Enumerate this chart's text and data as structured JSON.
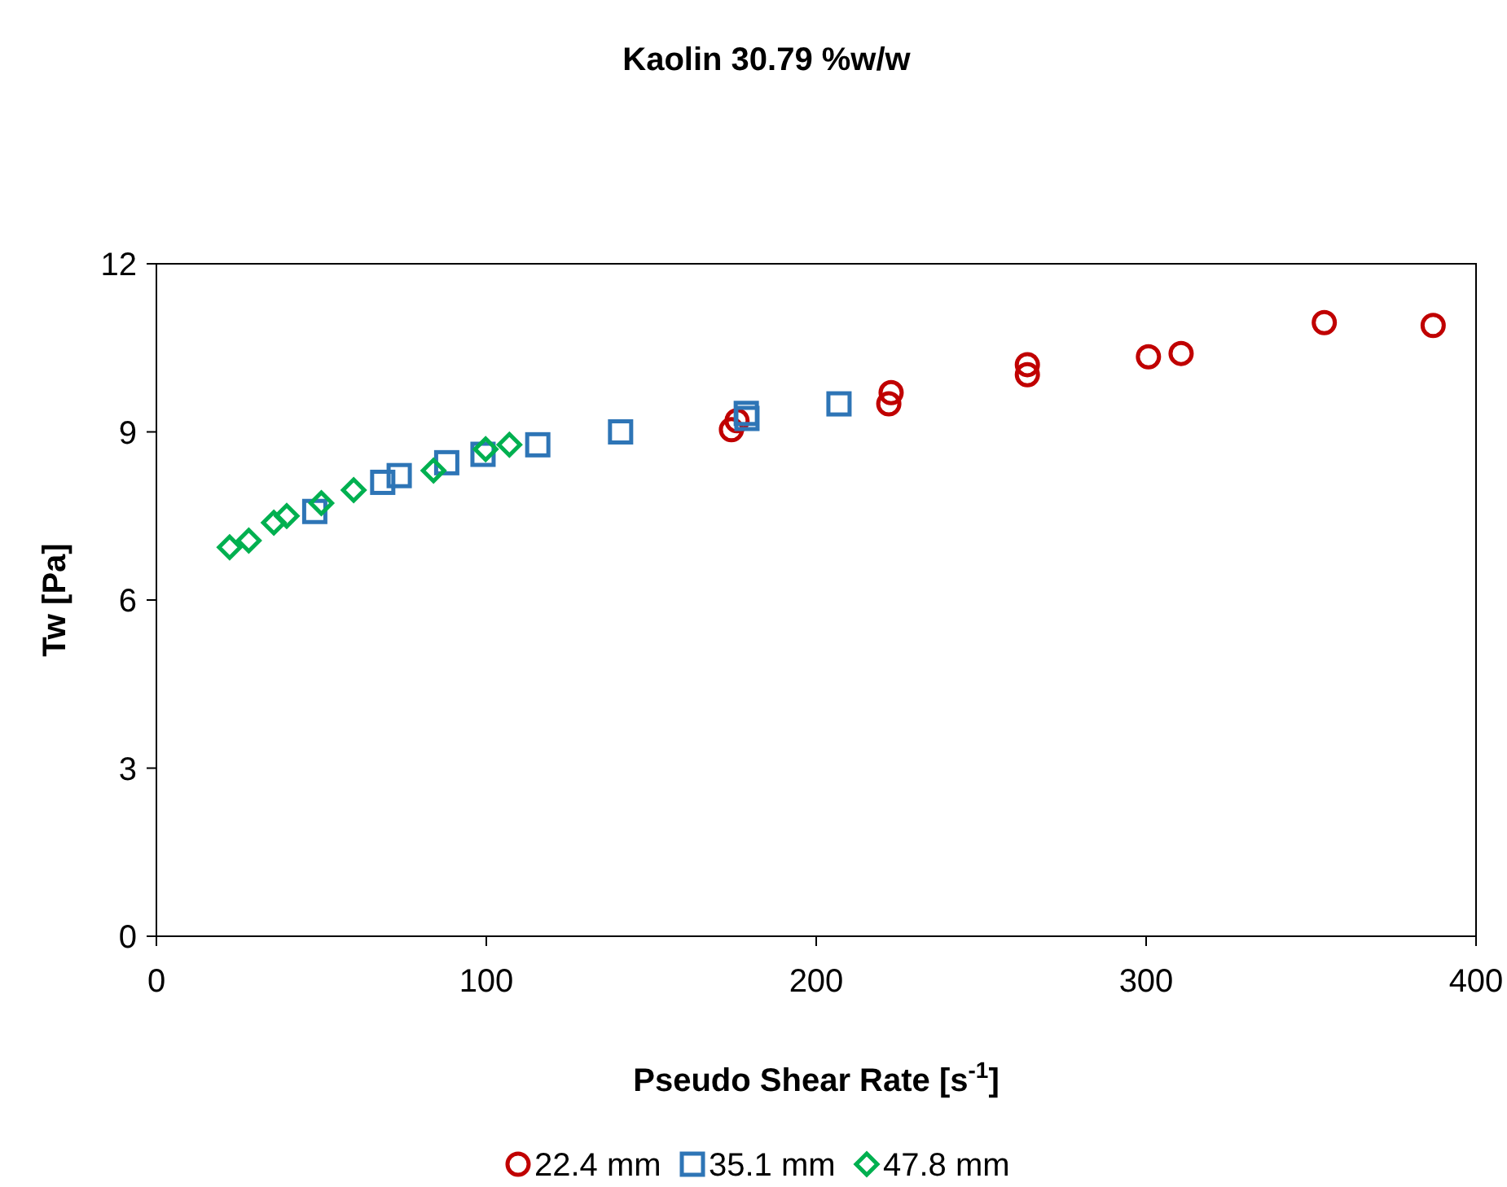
{
  "chart_data": {
    "type": "scatter",
    "title": "Kaolin 30.79 %w/w",
    "xlabel": "Pseudo Shear Rate [s$^{-1}$]",
    "ylabel": "Tw [Pa]",
    "xlim": [
      0,
      400
    ],
    "xticks": [
      0,
      100,
      200,
      300,
      400
    ],
    "ylim": [
      0,
      12
    ],
    "yticks": [
      0,
      3,
      6,
      9,
      12
    ],
    "grid": false,
    "legend": "bottom",
    "series": [
      {
        "name": "22.4 mm",
        "color": "#c00000",
        "marker": "circle",
        "x": [
          174.3,
          176,
          222,
          222.7,
          264,
          264,
          300.7,
          310.6,
          354,
          387
        ],
        "values": [
          9.04,
          9.2,
          9.5,
          9.7,
          10.02,
          10.2,
          10.34,
          10.4,
          10.95,
          10.9
        ]
      },
      {
        "name": "35.1 mm",
        "color": "#2e75b6",
        "marker": "square",
        "x": [
          48,
          68.6,
          73.6,
          88,
          99,
          115.6,
          140.7,
          178.8,
          179,
          206.9
        ],
        "values": [
          7.58,
          8.1,
          8.22,
          8.45,
          8.6,
          8.77,
          9.0,
          9.33,
          9.24,
          9.5
        ]
      },
      {
        "name": "47.8 mm",
        "color": "#00b050",
        "marker": "diamond",
        "x": [
          22.2,
          28,
          35.6,
          39.5,
          50,
          59.8,
          84,
          99.8,
          107
        ],
        "values": [
          6.94,
          7.06,
          7.38,
          7.5,
          7.73,
          7.96,
          8.31,
          8.69,
          8.77
        ]
      }
    ]
  }
}
